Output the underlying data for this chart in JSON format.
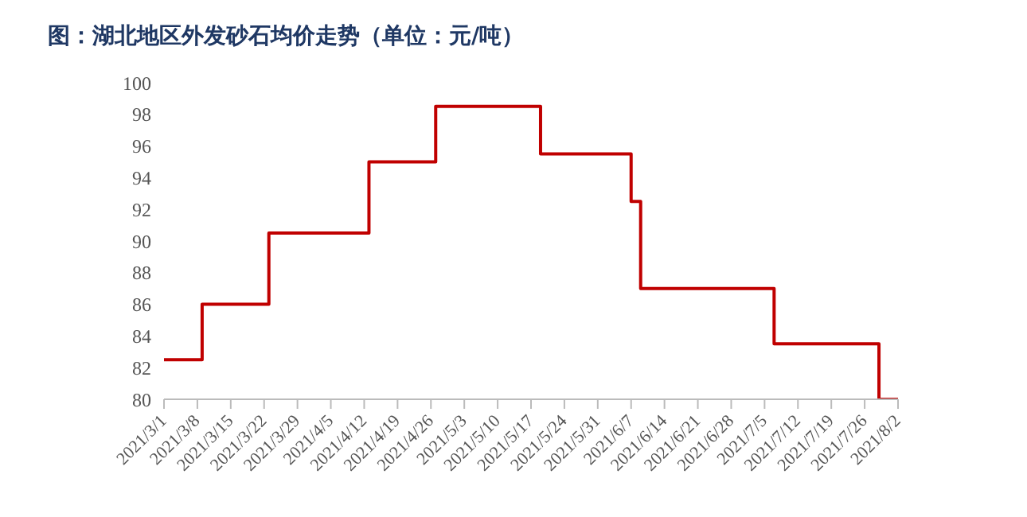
{
  "chart_data": {
    "type": "step",
    "title": "图：湖北地区外发砂石均价走势（单位：元/吨）",
    "x": [
      "2021-03-01",
      "2021-03-09",
      "2021-03-23",
      "2021-04-13",
      "2021-04-27",
      "2021-05-19",
      "2021-06-07",
      "2021-06-09",
      "2021-07-07",
      "2021-07-29",
      "2021-08-02"
    ],
    "series": [
      {
        "color": "#c00000",
        "values": [
          82.5,
          86,
          90.5,
          95,
          98.5,
          95.5,
          92.5,
          87,
          83.5,
          80,
          80
        ]
      }
    ],
    "xlim": [
      "2021-03-01",
      "2021-08-02"
    ],
    "xticks": [
      {
        "value": "2021-03-01",
        "label": "2021/3/1"
      },
      {
        "value": "2021-03-08",
        "label": "2021/3/8"
      },
      {
        "value": "2021-03-15",
        "label": "2021/3/15"
      },
      {
        "value": "2021-03-22",
        "label": "2021/3/22"
      },
      {
        "value": "2021-03-29",
        "label": "2021/3/29"
      },
      {
        "value": "2021-04-05",
        "label": "2021/4/5"
      },
      {
        "value": "2021-04-12",
        "label": "2021/4/12"
      },
      {
        "value": "2021-04-19",
        "label": "2021/4/19"
      },
      {
        "value": "2021-04-26",
        "label": "2021/4/26"
      },
      {
        "value": "2021-05-03",
        "label": "2021/5/3"
      },
      {
        "value": "2021-05-10",
        "label": "2021/5/10"
      },
      {
        "value": "2021-05-17",
        "label": "2021/5/17"
      },
      {
        "value": "2021-05-24",
        "label": "2021/5/24"
      },
      {
        "value": "2021-05-31",
        "label": "2021/5/31"
      },
      {
        "value": "2021-06-07",
        "label": "2021/6/7"
      },
      {
        "value": "2021-06-14",
        "label": "2021/6/14"
      },
      {
        "value": "2021-06-21",
        "label": "2021/6/21"
      },
      {
        "value": "2021-06-28",
        "label": "2021/6/28"
      },
      {
        "value": "2021-07-05",
        "label": "2021/7/5"
      },
      {
        "value": "2021-07-12",
        "label": "2021/7/12"
      },
      {
        "value": "2021-07-19",
        "label": "2021/7/19"
      },
      {
        "value": "2021-07-26",
        "label": "2021/7/26"
      },
      {
        "value": "2021-08-02",
        "label": "2021/8/2"
      }
    ],
    "ylim": [
      80,
      100
    ],
    "yticks": [
      80,
      82,
      84,
      86,
      88,
      90,
      92,
      94,
      96,
      98,
      100
    ],
    "grid": false,
    "legend": false,
    "marker": "none",
    "line_style": "solid"
  }
}
